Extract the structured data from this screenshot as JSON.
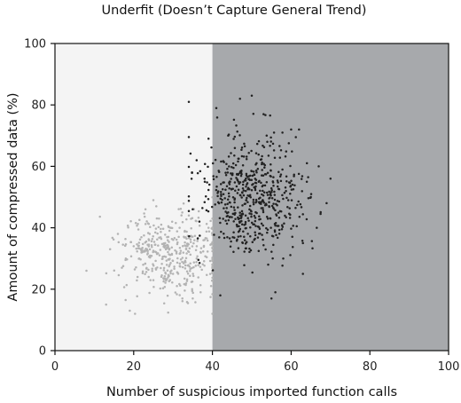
{
  "chart_data": {
    "type": "scatter",
    "title": "Underfit (Doesn’t Capture General Trend)",
    "xlabel": "Number of suspicious imported function calls",
    "ylabel": "Amount of compressed data (%)",
    "xlim": [
      0,
      100
    ],
    "ylim": [
      0,
      100
    ],
    "xticks": [
      0,
      20,
      40,
      60,
      80,
      100
    ],
    "yticks": [
      0,
      20,
      40,
      60,
      80,
      100
    ],
    "grid": false,
    "decision_boundary_x": 40,
    "regions": [
      {
        "x_from": 0,
        "x_to": 40,
        "color": "#f4f4f4"
      },
      {
        "x_from": 40,
        "x_to": 100,
        "color": "#a7a9ac"
      }
    ],
    "series": [
      {
        "color": "#b3b3b3",
        "x_mean": 30,
        "x_std": 6.5,
        "y_mean": 31,
        "y_std": 6.5,
        "count": 420,
        "points": [
          [
            8,
            26
          ],
          [
            13,
            15
          ],
          [
            14,
            33
          ],
          [
            16,
            38
          ],
          [
            17,
            27
          ],
          [
            18,
            30
          ],
          [
            19,
            13
          ],
          [
            20,
            34
          ],
          [
            21,
            24
          ],
          [
            23,
            46
          ],
          [
            25,
            49
          ],
          [
            27,
            41
          ],
          [
            28,
            35
          ],
          [
            30,
            25
          ],
          [
            31,
            21
          ],
          [
            33,
            39
          ],
          [
            34,
            44
          ],
          [
            35,
            17
          ],
          [
            36,
            30
          ],
          [
            37,
            19
          ],
          [
            38,
            36
          ],
          [
            39,
            40
          ]
        ]
      },
      {
        "color": "#222222",
        "x_mean": 50,
        "x_std": 6.5,
        "y_mean": 50,
        "y_std": 9.5,
        "count": 560,
        "points": [
          [
            34,
            81
          ],
          [
            35,
            46
          ],
          [
            36,
            62
          ],
          [
            38,
            56
          ],
          [
            39,
            69
          ],
          [
            41,
            79
          ],
          [
            42,
            18
          ],
          [
            44,
            70
          ],
          [
            47,
            82
          ],
          [
            50,
            83
          ],
          [
            53,
            77
          ],
          [
            55,
            17
          ],
          [
            56,
            19
          ],
          [
            58,
            30
          ],
          [
            60,
            72
          ],
          [
            62,
            72
          ],
          [
            63,
            25
          ],
          [
            63,
            35
          ],
          [
            64,
            61
          ],
          [
            65,
            50
          ],
          [
            67,
            60
          ],
          [
            69,
            48
          ],
          [
            70,
            56
          ]
        ]
      }
    ]
  }
}
